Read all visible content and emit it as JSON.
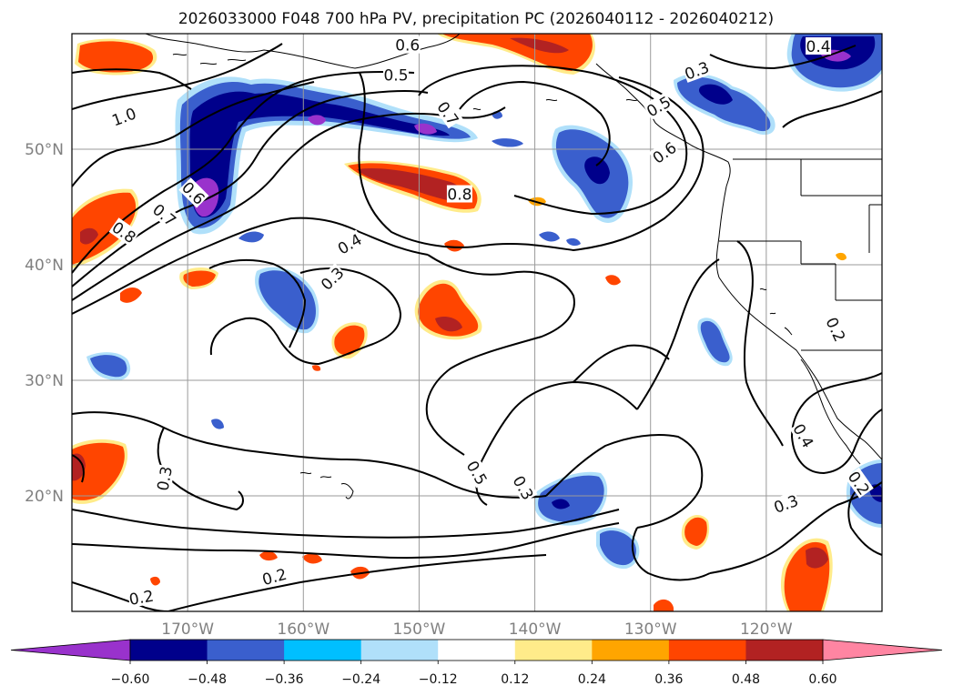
{
  "figure": {
    "title": "2026033000 F048 700 hPa PV, precipitation PC (2026040112 - 2026040212)"
  },
  "chart_data": {
    "type": "contour-map",
    "title": "2026033000 F048 700 hPa PV, precipitation PC (2026040112 - 2026040212)",
    "lon_range": [
      -180,
      -110
    ],
    "lat_range": [
      10,
      60
    ],
    "x_ticks": [
      {
        "lon": -170,
        "label": "170°W"
      },
      {
        "lon": -160,
        "label": "160°W"
      },
      {
        "lon": -150,
        "label": "150°W"
      },
      {
        "lon": -140,
        "label": "140°W"
      },
      {
        "lon": -130,
        "label": "130°W"
      },
      {
        "lon": -120,
        "label": "120°W"
      }
    ],
    "y_ticks": [
      {
        "lat": 20,
        "label": "20°N"
      },
      {
        "lat": 30,
        "label": "30°N"
      },
      {
        "lat": 40,
        "label": "40°N"
      },
      {
        "lat": 50,
        "label": "50°N"
      }
    ],
    "pv_contour_labels": [
      {
        "text": "1.0",
        "lon": -175.5,
        "lat": 52.8,
        "rot": 20
      },
      {
        "text": "0.8",
        "lon": -175.5,
        "lat": 42.8,
        "rot": -35
      },
      {
        "text": "0.7",
        "lon": -172.0,
        "lat": 44.3,
        "rot": -40
      },
      {
        "text": "0.6",
        "lon": -169.5,
        "lat": 46.2,
        "rot": -45
      },
      {
        "text": "0.6",
        "lon": -151.0,
        "lat": 59.0,
        "rot": 0
      },
      {
        "text": "0.5",
        "lon": -152.0,
        "lat": 56.4,
        "rot": 0
      },
      {
        "text": "0.7",
        "lon": -147.5,
        "lat": 53.1,
        "rot": -55
      },
      {
        "text": "0.8",
        "lon": -146.5,
        "lat": 46.1,
        "rot": 0
      },
      {
        "text": "0.4",
        "lon": -156.0,
        "lat": 41.8,
        "rot": 30
      },
      {
        "text": "0.3",
        "lon": -157.5,
        "lat": 38.8,
        "rot": 45
      },
      {
        "text": "0.5",
        "lon": -129.3,
        "lat": 53.7,
        "rot": 30
      },
      {
        "text": "0.6",
        "lon": -128.8,
        "lat": 49.7,
        "rot": 35
      },
      {
        "text": "0.3",
        "lon": -126.0,
        "lat": 56.8,
        "rot": 20
      },
      {
        "text": "0.4",
        "lon": -115.5,
        "lat": 58.9,
        "rot": 0
      },
      {
        "text": "0.2",
        "lon": -114.0,
        "lat": 34.4,
        "rot": -65
      },
      {
        "text": "0.4",
        "lon": -116.8,
        "lat": 25.2,
        "rot": -60
      },
      {
        "text": "0.3",
        "lon": -118.3,
        "lat": 19.3,
        "rot": 20
      },
      {
        "text": "0.2",
        "lon": -112.0,
        "lat": 21.1,
        "rot": -55
      },
      {
        "text": "0.3",
        "lon": -172.0,
        "lat": 21.5,
        "rot": 80
      },
      {
        "text": "0.5",
        "lon": -145.0,
        "lat": 22.0,
        "rot": -60
      },
      {
        "text": "0.3",
        "lon": -141.0,
        "lat": 20.7,
        "rot": -60
      },
      {
        "text": "0.2",
        "lon": -162.5,
        "lat": 13.0,
        "rot": 15
      },
      {
        "text": "0.2",
        "lon": -174.0,
        "lat": 11.2,
        "rot": 10
      }
    ],
    "colorbar": {
      "levels": [
        -0.6,
        -0.48,
        -0.36,
        -0.24,
        -0.12,
        0.12,
        0.24,
        0.36,
        0.48,
        0.6
      ],
      "tick_labels": [
        "−0.60",
        "−0.48",
        "−0.36",
        "−0.24",
        "−0.12",
        "0.12",
        "0.24",
        "0.36",
        "0.48",
        "0.60"
      ],
      "colors": [
        "#9932cc",
        "#00008b",
        "#3a5fcd",
        "#00bfff",
        "#b0e0fa",
        "#ffffff",
        "#ffeb8a",
        "#ffa500",
        "#ff4500",
        "#b22222",
        "#ff85a2"
      ],
      "extend": "both"
    }
  }
}
